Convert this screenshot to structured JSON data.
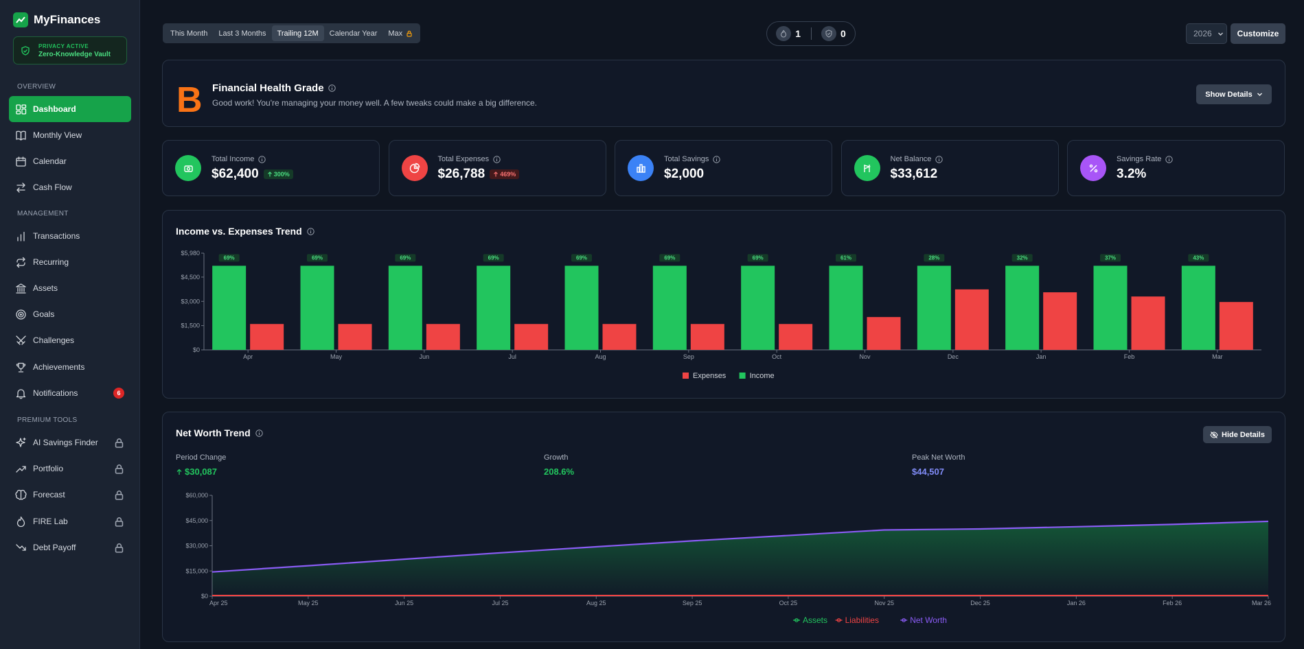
{
  "app": {
    "name": "MyFinances"
  },
  "privacy": {
    "status": "PRIVACY ACTIVE",
    "label": "Zero-Knowledge Vault"
  },
  "sidebar": {
    "sections": [
      {
        "label": "OVERVIEW"
      },
      {
        "label": "MANAGEMENT"
      },
      {
        "label": "PREMIUM TOOLS"
      }
    ],
    "items": [
      {
        "label": "Dashboard",
        "icon": "dashboard-icon"
      },
      {
        "label": "Monthly View",
        "icon": "book-icon"
      },
      {
        "label": "Calendar",
        "icon": "calendar-icon"
      },
      {
        "label": "Cash Flow",
        "icon": "swap-icon"
      },
      {
        "label": "Transactions",
        "icon": "bars-icon"
      },
      {
        "label": "Recurring",
        "icon": "repeat-icon"
      },
      {
        "label": "Assets",
        "icon": "bank-icon"
      },
      {
        "label": "Goals",
        "icon": "target-icon"
      },
      {
        "label": "Challenges",
        "icon": "swords-icon"
      },
      {
        "label": "Achievements",
        "icon": "trophy-icon"
      },
      {
        "label": "Notifications",
        "icon": "bell-icon",
        "badge": "6"
      },
      {
        "label": "AI Savings Finder",
        "icon": "sparkles-icon"
      },
      {
        "label": "Portfolio",
        "icon": "trending-up-icon"
      },
      {
        "label": "Forecast",
        "icon": "brain-icon"
      },
      {
        "label": "FIRE Lab",
        "icon": "flame-icon"
      },
      {
        "label": "Debt Payoff",
        "icon": "trending-down-icon"
      }
    ]
  },
  "toolbar": {
    "ranges": [
      "This Month",
      "Last 3 Months",
      "Trailing 12M",
      "Calendar Year",
      "Max"
    ],
    "selected_range": "Trailing 12M",
    "streak": "1",
    "shields": "0",
    "year": "2026",
    "customize": "Customize"
  },
  "health": {
    "grade": "B",
    "title": "Financial Health Grade",
    "subtitle": "Good work! You're managing your money well. A few tweaks could make a big difference.",
    "button": "Show Details"
  },
  "stats": [
    {
      "label": "Total Income",
      "value": "$62,400",
      "change": "300%",
      "direction": "up",
      "color": "#22c55e"
    },
    {
      "label": "Total Expenses",
      "value": "$26,788",
      "change": "469%",
      "direction": "up",
      "color": "#ef4444"
    },
    {
      "label": "Total Savings",
      "value": "$2,000",
      "color": "#3b82f6"
    },
    {
      "label": "Net Balance",
      "value": "$33,612",
      "color": "#22c55e"
    },
    {
      "label": "Savings Rate",
      "value": "3.2%",
      "color": "#a855f7"
    }
  ],
  "trend": {
    "title": "Income vs. Expenses Trend"
  },
  "networth": {
    "title": "Net Worth Trend",
    "button": "Hide Details",
    "period_change_label": "Period Change",
    "period_change": "$30,087",
    "growth_label": "Growth",
    "growth": "208.6%",
    "peak_label": "Peak Net Worth",
    "peak": "$44,507"
  },
  "chart_data": [
    {
      "type": "bar",
      "title": "Income vs. Expenses Trend",
      "categories": [
        "Apr",
        "May",
        "Jun",
        "Jul",
        "Aug",
        "Sep",
        "Oct",
        "Nov",
        "Dec",
        "Jan",
        "Feb",
        "Mar"
      ],
      "series": [
        {
          "name": "Income",
          "color": "#22c55e",
          "values": [
            5200,
            5200,
            5200,
            5200,
            5200,
            5200,
            5200,
            5200,
            5200,
            5200,
            5200,
            5200
          ]
        },
        {
          "name": "Expenses",
          "color": "#ef4444",
          "values": [
            1600,
            1600,
            1600,
            1600,
            1600,
            1600,
            1600,
            2030,
            3740,
            3560,
            3300,
            2960
          ]
        }
      ],
      "data_labels": [
        "69%",
        "69%",
        "69%",
        "69%",
        "69%",
        "69%",
        "69%",
        "61%",
        "28%",
        "32%",
        "37%",
        "43%"
      ],
      "yticks": [
        "$0",
        "$1,500",
        "$3,000",
        "$4,500",
        "$5,980"
      ],
      "ylim": [
        0,
        5980
      ],
      "legend": "bottom-center",
      "legend_order": [
        "Expenses",
        "Income"
      ]
    },
    {
      "type": "area",
      "title": "Net Worth Trend",
      "x": [
        "Apr 25",
        "May 25",
        "Jun 25",
        "Jul 25",
        "Aug 25",
        "Sep 25",
        "Oct 25",
        "Nov 25",
        "Dec 25",
        "Jan 26",
        "Feb 26",
        "Mar 26"
      ],
      "series": [
        {
          "name": "Assets",
          "color": "#22c55e",
          "values": [
            14420,
            18100,
            22000,
            25800,
            29400,
            32900,
            36100,
            39400,
            40000,
            41300,
            42700,
            44507
          ]
        },
        {
          "name": "Liabilities",
          "color": "#ef4444",
          "values": [
            0,
            0,
            0,
            0,
            0,
            0,
            0,
            0,
            0,
            0,
            0,
            0
          ]
        },
        {
          "name": "Net Worth",
          "color": "#8b5cf6",
          "values": [
            14420,
            18100,
            22000,
            25800,
            29400,
            32900,
            36100,
            39400,
            40000,
            41300,
            42700,
            44507
          ]
        }
      ],
      "yticks": [
        "$0",
        "$15,000",
        "$30,000",
        "$45,000",
        "$60,000"
      ],
      "ylim": [
        0,
        60000
      ],
      "legend": "bottom-center"
    }
  ]
}
